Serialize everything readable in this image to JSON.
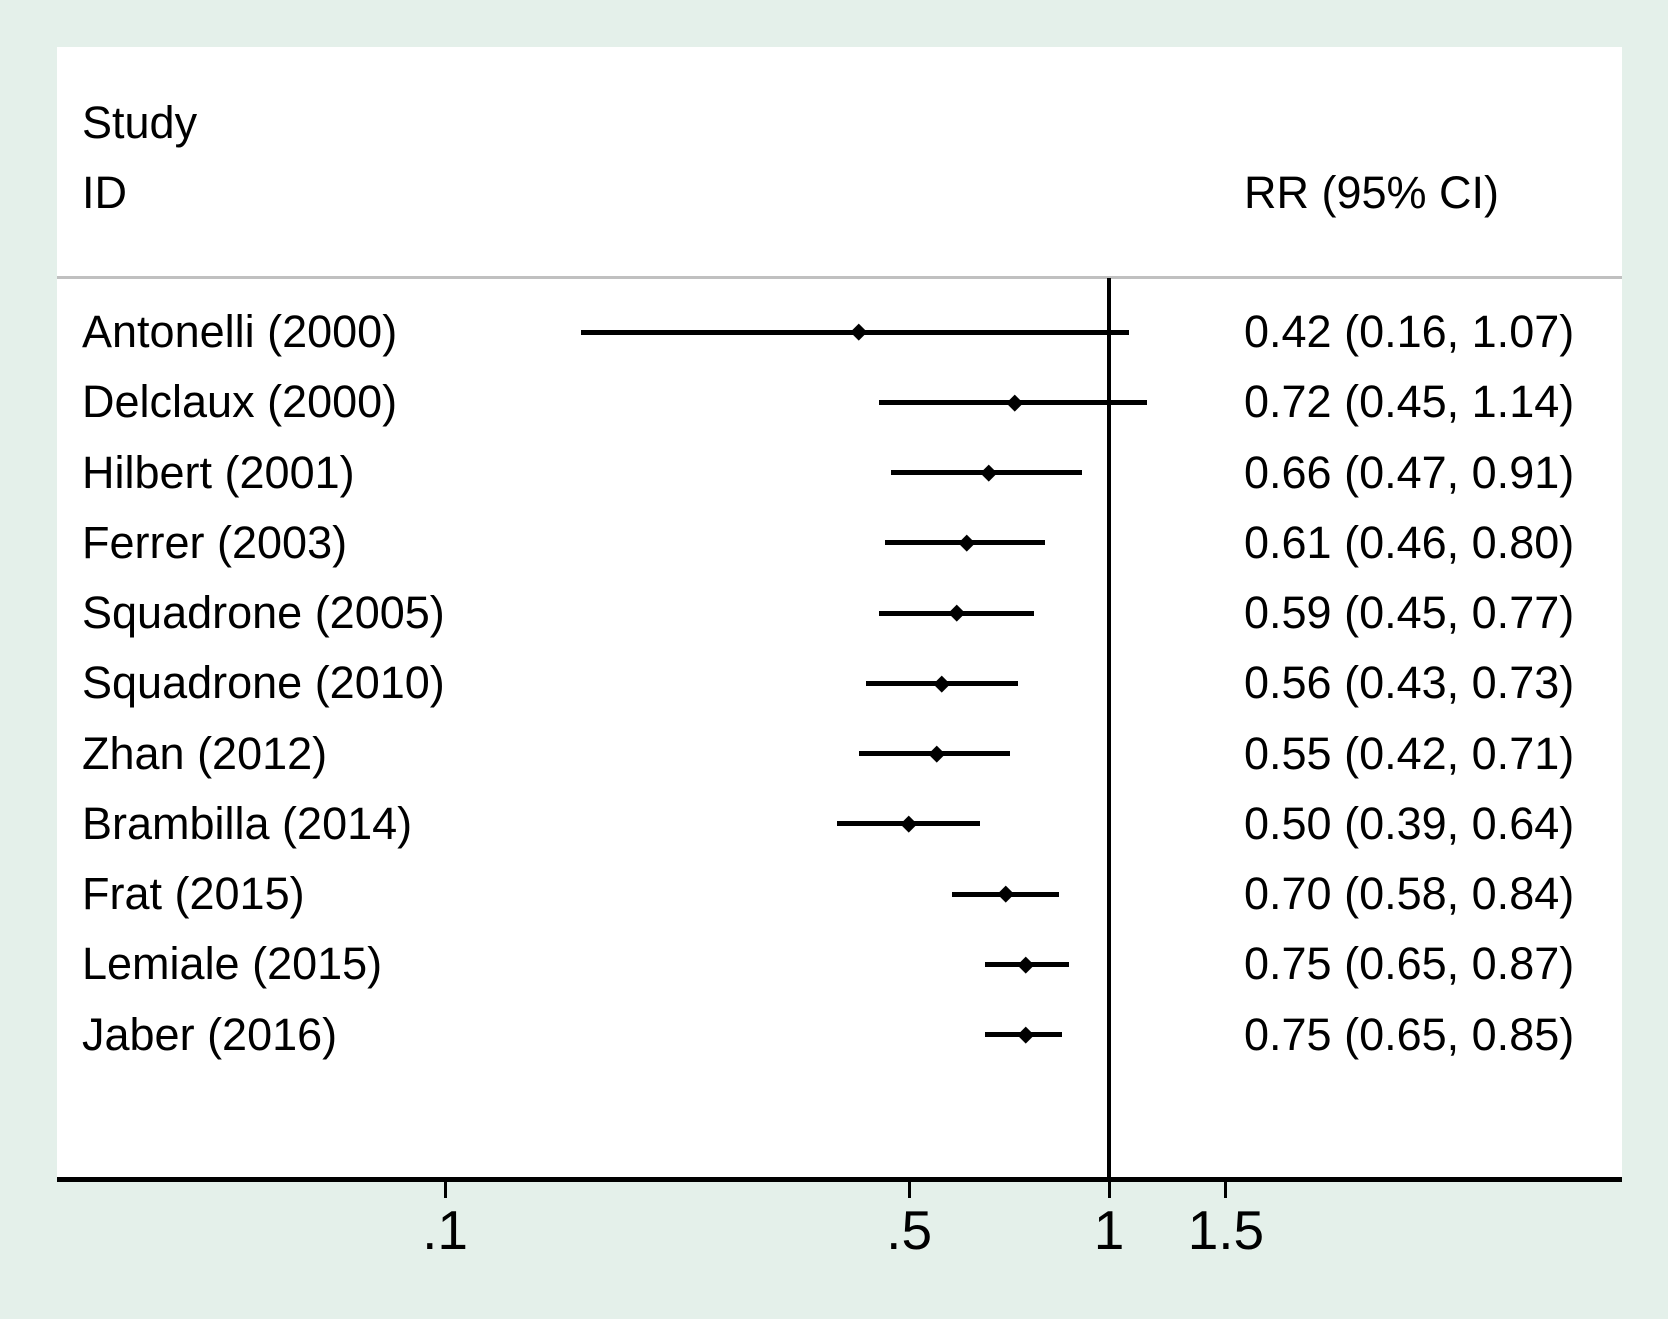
{
  "figure": {
    "left_header_line1": "Study",
    "left_header_line2": "ID",
    "right_header": "RR (95% CI)"
  },
  "chart_data": {
    "type": "forest",
    "effect_measure": "RR (95% CI)",
    "x_scale": "log10",
    "ref_line_value": 1,
    "x_ticks": [
      {
        "label": ".1",
        "value": 0.1
      },
      {
        "label": ".5",
        "value": 0.5
      },
      {
        "label": "1",
        "value": 1
      },
      {
        "label": "1.5",
        "value": 1.5
      }
    ],
    "studies": [
      {
        "label": "Antonelli (2000)",
        "rr": 0.42,
        "ci_low": 0.16,
        "ci_high": 1.07,
        "display": "0.42 (0.16, 1.07)"
      },
      {
        "label": "Delclaux (2000)",
        "rr": 0.72,
        "ci_low": 0.45,
        "ci_high": 1.14,
        "display": "0.72 (0.45, 1.14)"
      },
      {
        "label": "Hilbert (2001)",
        "rr": 0.66,
        "ci_low": 0.47,
        "ci_high": 0.91,
        "display": "0.66 (0.47, 0.91)"
      },
      {
        "label": "Ferrer (2003)",
        "rr": 0.61,
        "ci_low": 0.46,
        "ci_high": 0.8,
        "display": "0.61 (0.46, 0.80)"
      },
      {
        "label": "Squadrone (2005)",
        "rr": 0.59,
        "ci_low": 0.45,
        "ci_high": 0.77,
        "display": "0.59 (0.45, 0.77)"
      },
      {
        "label": "Squadrone (2010)",
        "rr": 0.56,
        "ci_low": 0.43,
        "ci_high": 0.73,
        "display": "0.56 (0.43, 0.73)"
      },
      {
        "label": "Zhan (2012)",
        "rr": 0.55,
        "ci_low": 0.42,
        "ci_high": 0.71,
        "display": "0.55 (0.42, 0.71)"
      },
      {
        "label": "Brambilla (2014)",
        "rr": 0.5,
        "ci_low": 0.39,
        "ci_high": 0.64,
        "display": "0.50 (0.39, 0.64)"
      },
      {
        "label": "Frat (2015)",
        "rr": 0.7,
        "ci_low": 0.58,
        "ci_high": 0.84,
        "display": "0.70 (0.58, 0.84)"
      },
      {
        "label": "Lemiale (2015)",
        "rr": 0.75,
        "ci_low": 0.65,
        "ci_high": 0.87,
        "display": "0.75 (0.65, 0.87)"
      },
      {
        "label": "Jaber (2016)",
        "rr": 0.75,
        "ci_low": 0.65,
        "ci_high": 0.85,
        "display": "0.75 (0.65, 0.85)"
      }
    ],
    "colors": {
      "background": "#e4f0ea",
      "plot_background": "#ffffff",
      "ink": "#000000",
      "header_rule": "#c0c0c0"
    }
  }
}
